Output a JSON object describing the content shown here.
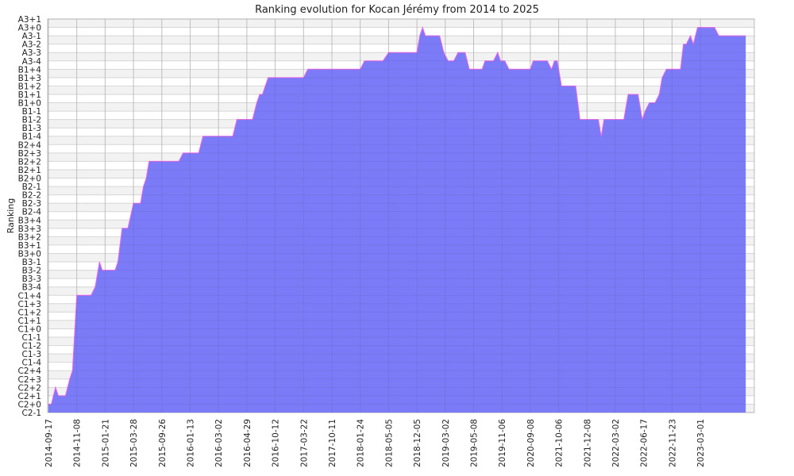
{
  "chart_data": {
    "type": "area",
    "title": "Ranking evolution for Kocan Jérémy from 2014 to 2025",
    "xlabel": "",
    "ylabel": "Ranking",
    "grid": true,
    "legend": "none",
    "colors": {
      "fill": "#7b7bf7",
      "stroke": "#ee66ee",
      "band": "#f2f2f2",
      "grid": "#cccccc"
    },
    "y_ticks": [
      "C2-1",
      "C2+0",
      "C2+1",
      "C2+2",
      "C2+3",
      "C2+4",
      "C1-4",
      "C1-3",
      "C1-2",
      "C1-1",
      "C1+0",
      "C1+1",
      "C1+2",
      "C1+3",
      "C1+4",
      "B3-4",
      "B3-3",
      "B3-2",
      "B3-1",
      "B3+0",
      "B3+1",
      "B3+2",
      "B3+3",
      "B3+4",
      "B2-4",
      "B2-3",
      "B2-2",
      "B2-1",
      "B2+0",
      "B2+1",
      "B2+2",
      "B2+3",
      "B2+4",
      "B1-4",
      "B1-3",
      "B1-2",
      "B1-1",
      "B1+0",
      "B1+1",
      "B1+2",
      "B1+3",
      "B1+4",
      "A3-4",
      "A3-3",
      "A3-2",
      "A3-1",
      "A3+0",
      "A3+1"
    ],
    "x_ticks": [
      "2014-09-17",
      "2014-11-08",
      "2015-01-21",
      "2015-03-28",
      "2015-09-26",
      "2016-01-13",
      "2016-03-02",
      "2016-04-29",
      "2016-10-12",
      "2017-03-22",
      "2017-10-11",
      "2018-01-24",
      "2018-05-05",
      "2018-12-05",
      "2019-03-02",
      "2019-05-08",
      "2019-11-06",
      "2020-09-08",
      "2021-10-06",
      "2021-12-08",
      "2022-03-02",
      "2022-06-17",
      "2022-11-23",
      "2023-03-01"
    ],
    "series": [
      {
        "values": [
          [
            0,
            "C2+0"
          ],
          [
            0.1,
            "C2+0"
          ],
          [
            0.25,
            "C2+2"
          ],
          [
            0.35,
            "C2+1"
          ],
          [
            0.6,
            "C2+1"
          ],
          [
            0.75,
            "C2+3"
          ],
          [
            0.85,
            "C2+4"
          ],
          [
            1.0,
            "C1+4"
          ],
          [
            1.5,
            "C1+4"
          ],
          [
            1.65,
            "B3-4"
          ],
          [
            1.8,
            "B3-1"
          ],
          [
            1.9,
            "B3-2"
          ],
          [
            2.35,
            "B3-2"
          ],
          [
            2.45,
            "B3-1"
          ],
          [
            2.6,
            "B3+3"
          ],
          [
            2.8,
            "B3+3"
          ],
          [
            3.0,
            "B2-3"
          ],
          [
            3.25,
            "B2-3"
          ],
          [
            3.35,
            "B2-1"
          ],
          [
            3.45,
            "B2+0"
          ],
          [
            3.55,
            "B2+2"
          ],
          [
            4.6,
            "B2+2"
          ],
          [
            4.75,
            "B2+3"
          ],
          [
            5.3,
            "B2+3"
          ],
          [
            5.45,
            "B1-4"
          ],
          [
            6.5,
            "B1-4"
          ],
          [
            6.65,
            "B1-2"
          ],
          [
            7.2,
            "B1-2"
          ],
          [
            7.35,
            "B1+0"
          ],
          [
            7.45,
            "B1+1"
          ],
          [
            7.55,
            "B1+1"
          ],
          [
            7.75,
            "B1+3"
          ],
          [
            9.0,
            "B1+3"
          ],
          [
            9.15,
            "B1+4"
          ],
          [
            11.0,
            "B1+4"
          ],
          [
            11.15,
            "A3-4"
          ],
          [
            11.8,
            "A3-4"
          ],
          [
            12.0,
            "A3-3"
          ],
          [
            13.0,
            "A3-3"
          ],
          [
            13.1,
            "A3-1"
          ],
          [
            13.2,
            "A3+0"
          ],
          [
            13.3,
            "A3-1"
          ],
          [
            13.8,
            "A3-1"
          ],
          [
            13.95,
            "A3-3"
          ],
          [
            14.1,
            "A3-4"
          ],
          [
            14.3,
            "A3-4"
          ],
          [
            14.45,
            "A3-3"
          ],
          [
            14.7,
            "A3-3"
          ],
          [
            14.85,
            "B1+4"
          ],
          [
            15.3,
            "B1+4"
          ],
          [
            15.4,
            "A3-4"
          ],
          [
            15.7,
            "A3-4"
          ],
          [
            15.85,
            "A3-3"
          ],
          [
            15.95,
            "A3-4"
          ],
          [
            16.1,
            "A3-4"
          ],
          [
            16.25,
            "B1+4"
          ],
          [
            17.0,
            "B1+4"
          ],
          [
            17.1,
            "A3-4"
          ],
          [
            17.6,
            "A3-4"
          ],
          [
            17.75,
            "B1+4"
          ],
          [
            17.85,
            "A3-4"
          ],
          [
            17.95,
            "A3-4"
          ],
          [
            18.1,
            "B1+2"
          ],
          [
            18.6,
            "B1+2"
          ],
          [
            18.75,
            "B1-2"
          ],
          [
            19.4,
            "B1-2"
          ],
          [
            19.5,
            "B1-4"
          ],
          [
            19.6,
            "B1-2"
          ],
          [
            20.3,
            "B1-2"
          ],
          [
            20.45,
            "B1+1"
          ],
          [
            20.8,
            "B1+1"
          ],
          [
            20.95,
            "B1-2"
          ],
          [
            21.05,
            "B1-1"
          ],
          [
            21.2,
            "B1+0"
          ],
          [
            21.4,
            "B1+0"
          ],
          [
            21.55,
            "B1+1"
          ],
          [
            21.65,
            "B1+3"
          ],
          [
            21.8,
            "B1+4"
          ],
          [
            22.3,
            "B1+4"
          ],
          [
            22.4,
            "A3-2"
          ],
          [
            22.5,
            "A3-2"
          ],
          [
            22.65,
            "A3-1"
          ],
          [
            22.75,
            "A3-2"
          ],
          [
            22.9,
            "A3+0"
          ],
          [
            23.5,
            "A3+0"
          ],
          [
            23.65,
            "A3-1"
          ],
          [
            24.6,
            "A3-1"
          ]
        ]
      }
    ]
  }
}
